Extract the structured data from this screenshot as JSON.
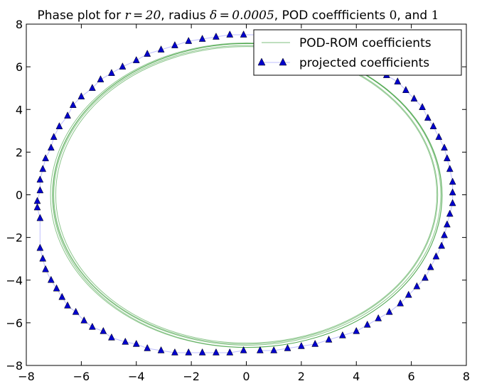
{
  "chart_data": {
    "type": "scatter",
    "title": {
      "part1": "Phase plot for ",
      "math1": "r = 20",
      "part2": ", radius ",
      "math2": "δ = 0.0005",
      "part3": ", POD coeffficients ",
      "math3": "0",
      "part4": ", and ",
      "math4": "1"
    },
    "xlabel": "",
    "ylabel": "",
    "xlim": [
      -8,
      8
    ],
    "ylim": [
      -8,
      8
    ],
    "xticks": [
      -8,
      -6,
      -4,
      -2,
      0,
      2,
      4,
      6,
      8
    ],
    "yticks": [
      -8,
      -6,
      -4,
      -2,
      0,
      2,
      4,
      6,
      8
    ],
    "xtick_labels": [
      "−8",
      "−6",
      "−4",
      "−2",
      "0",
      "2",
      "4",
      "6",
      "8"
    ],
    "ytick_labels": [
      "−8",
      "−6",
      "−4",
      "−2",
      "0",
      "2",
      "4",
      "6",
      "8"
    ],
    "grid": false,
    "legend_position": "top-right",
    "series": [
      {
        "name": "POD-ROM coefficients",
        "kind": "line",
        "color": "#008000",
        "loops": [
          {
            "cx": 0.0,
            "cy": -0.02,
            "rx": 7.12,
            "ry": 7.14
          },
          {
            "cx": 0.02,
            "cy": 0.02,
            "rx": 7.05,
            "ry": 7.07
          },
          {
            "cx": -0.02,
            "cy": 0.0,
            "rx": 6.98,
            "ry": 7.0
          },
          {
            "cx": 0.03,
            "cy": -0.03,
            "rx": 7.08,
            "ry": 7.12
          },
          {
            "cx": 0.0,
            "cy": 0.0,
            "rx": 6.93,
            "ry": 6.95
          }
        ]
      },
      {
        "name": "projected coefficients",
        "kind": "markers",
        "marker": "triangle",
        "color": "#0000cc",
        "line_color": "#8080ff",
        "x": [
          0.5,
          1.0,
          1.5,
          2.0,
          2.5,
          3.0,
          3.5,
          4.0,
          4.4,
          4.8,
          5.2,
          5.6,
          5.9,
          6.2,
          6.5,
          6.7,
          6.9,
          7.1,
          7.2,
          7.3,
          7.4,
          7.5,
          7.5,
          7.5,
          7.4,
          7.3,
          7.2,
          7.0,
          6.8,
          6.6,
          6.4,
          6.1,
          5.8,
          5.5,
          5.1,
          4.7,
          4.3,
          3.9,
          3.4,
          2.9,
          2.4,
          1.9,
          1.4,
          0.9,
          0.4,
          -0.1,
          -0.6,
          -1.1,
          -1.6,
          -2.1,
          -2.6,
          -3.1,
          -3.6,
          -4.0,
          -4.5,
          -4.9,
          -5.3,
          -5.6,
          -6.0,
          -6.3,
          -6.5,
          -6.8,
          -7.0,
          -7.1,
          -7.3,
          -7.4,
          -7.5,
          -7.5,
          -7.6,
          -7.6,
          -7.5,
          -7.5,
          -7.4,
          -7.3,
          -7.1,
          -6.9,
          -6.7,
          -6.5,
          -6.2,
          -5.9,
          -5.6,
          -5.2,
          -4.9,
          -4.4,
          -4.0,
          -3.6,
          -3.1,
          -2.6,
          -2.1,
          -1.6,
          -1.1,
          -0.6,
          -0.1
        ],
        "y": [
          -7.3,
          -7.3,
          -7.2,
          -7.1,
          -7.0,
          -6.8,
          -6.6,
          -6.4,
          -6.1,
          -5.8,
          -5.5,
          -5.1,
          -4.7,
          -4.3,
          -3.9,
          -3.4,
          -2.9,
          -2.4,
          -1.9,
          -1.4,
          -0.9,
          -0.4,
          0.1,
          0.6,
          1.2,
          1.7,
          2.2,
          2.7,
          3.2,
          3.6,
          4.1,
          4.5,
          4.9,
          5.3,
          5.6,
          6.0,
          6.3,
          6.5,
          6.8,
          7.0,
          7.1,
          7.3,
          7.4,
          7.5,
          7.5,
          7.5,
          7.5,
          7.4,
          7.3,
          7.2,
          7.0,
          6.8,
          6.6,
          6.3,
          6.0,
          5.7,
          5.4,
          5.0,
          4.6,
          4.2,
          3.7,
          3.2,
          2.7,
          2.2,
          1.7,
          1.2,
          0.7,
          0.2,
          -0.3,
          -0.6,
          -1.1,
          -2.5,
          -3.0,
          -3.5,
          -4.0,
          -4.4,
          -4.8,
          -5.2,
          -5.5,
          -5.9,
          -6.2,
          -6.4,
          -6.7,
          -6.9,
          -7.0,
          -7.2,
          -7.3,
          -7.4,
          -7.4,
          -7.4,
          -7.4,
          -7.4,
          -7.3
        ]
      }
    ]
  }
}
